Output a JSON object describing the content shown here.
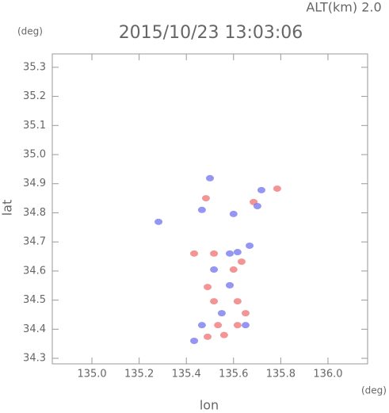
{
  "chart_data": {
    "type": "scatter",
    "title": "2015/10/23 13:03:06",
    "annotation": "ALT(km) 2.0",
    "x_label": "lon",
    "y_label": "lat",
    "x_unit": "(deg)",
    "y_unit": "(deg)",
    "xlim": [
      134.832,
      136.168
    ],
    "ylim": [
      34.281,
      35.346
    ],
    "xticks": [
      {
        "value": 135,
        "label": "135.0"
      },
      135.2,
      135.4,
      135.6,
      135.8,
      {
        "value": 136,
        "label": "136.0"
      }
    ],
    "yticks": [
      34.3,
      34.4,
      34.5,
      34.6,
      34.7,
      34.8,
      34.9,
      {
        "value": 35,
        "label": "35.0"
      },
      35.1,
      35.2,
      35.3
    ],
    "series": [
      {
        "color": "#f07a7a",
        "x": [
          135.785,
          135.56,
          135.49,
          135.617,
          135.534,
          135.517,
          135.617,
          135.49,
          135.634,
          135.517,
          135.433,
          135.483,
          135.685,
          135.6,
          135.651
        ],
        "y": [
          34.883,
          34.38,
          34.374,
          34.414,
          34.414,
          34.496,
          34.496,
          34.545,
          34.632,
          34.66,
          34.66,
          34.85,
          34.837,
          34.605,
          34.455
        ]
      },
      {
        "color": "#7a7af0",
        "x": [
          135.5,
          135.466,
          135.6,
          135.718,
          135.584,
          135.617,
          135.517,
          135.466,
          135.651,
          135.433,
          135.55,
          135.584,
          135.701,
          135.282,
          135.668
        ],
        "y": [
          34.919,
          34.81,
          34.796,
          34.878,
          34.66,
          34.665,
          34.605,
          34.414,
          34.414,
          34.36,
          34.455,
          34.551,
          34.823,
          34.769,
          34.687
        ]
      }
    ]
  }
}
